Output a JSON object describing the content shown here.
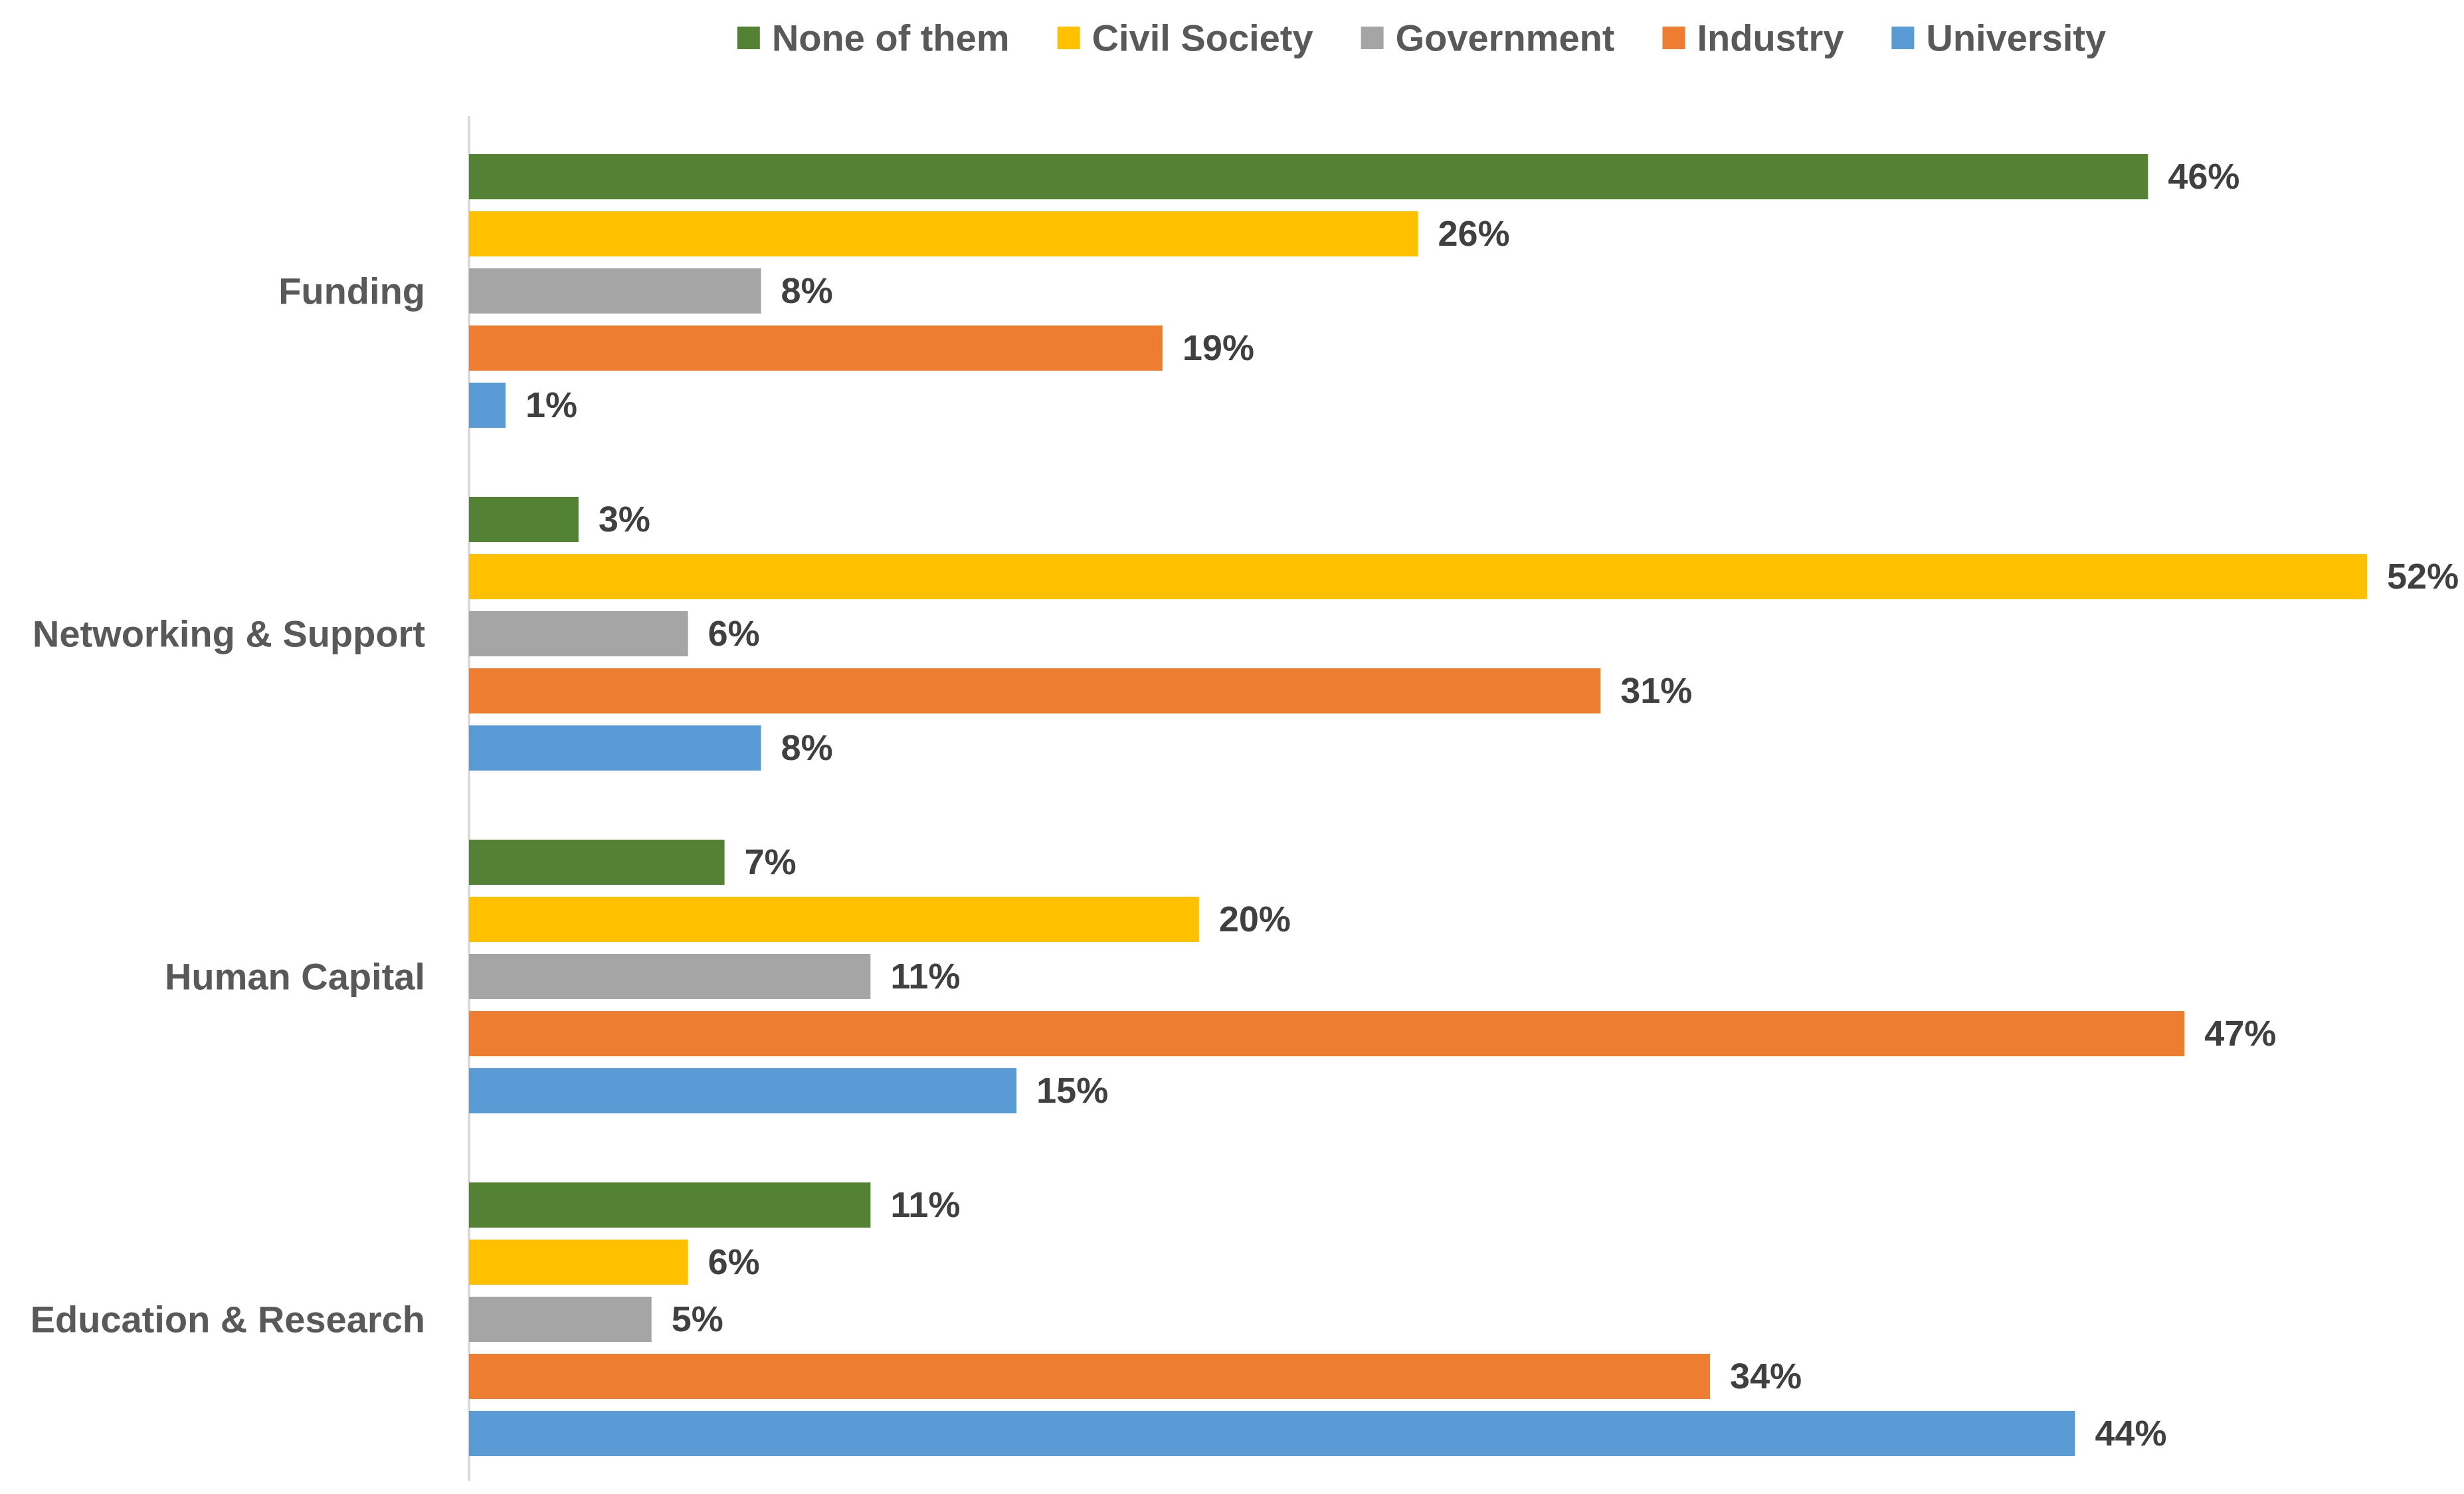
{
  "chart_data": {
    "type": "bar",
    "orientation": "horizontal",
    "title": "",
    "xlabel": "",
    "ylabel": "",
    "value_format": "percent",
    "xlim": [
      0,
      52
    ],
    "grid": false,
    "legend_position": "top-center",
    "categories": [
      "Funding",
      "Networking & Support",
      "Human Capital",
      "Education & Research"
    ],
    "series": [
      {
        "name": "None of them",
        "color": "#548235",
        "values": [
          46,
          3,
          7,
          11
        ],
        "labels": [
          "46%",
          "3%",
          "7%",
          "11%"
        ]
      },
      {
        "name": "Civil Society",
        "color": "#FFC000",
        "values": [
          26,
          52,
          20,
          6
        ],
        "labels": [
          "26%",
          "52%",
          "20%",
          "6%"
        ]
      },
      {
        "name": "Government",
        "color": "#A5A5A5",
        "values": [
          8,
          6,
          11,
          5
        ],
        "labels": [
          "8%",
          "6%",
          "11%",
          "5%"
        ]
      },
      {
        "name": "Industry",
        "color": "#ED7D31",
        "values": [
          19,
          31,
          47,
          34
        ],
        "labels": [
          "19%",
          "31%",
          "47%",
          "34%"
        ]
      },
      {
        "name": "University",
        "color": "#5B9BD5",
        "values": [
          1,
          8,
          15,
          44
        ],
        "labels": [
          "1%",
          "8%",
          "15%",
          "44%"
        ]
      }
    ],
    "axis_color": "#D9D9D9"
  }
}
